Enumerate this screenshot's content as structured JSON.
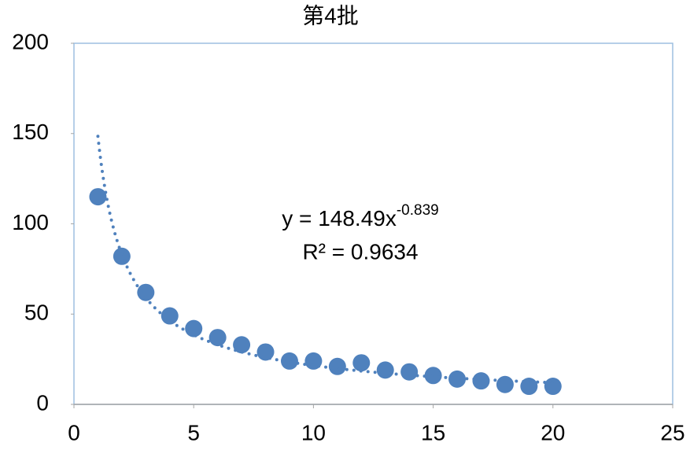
{
  "chart_data": {
    "type": "scatter",
    "title": "第4批",
    "series": [
      {
        "color": "#4f81bd",
        "x": [
          1,
          2,
          3,
          4,
          5,
          6,
          7,
          8,
          9,
          10,
          11,
          12,
          13,
          14,
          15,
          16,
          17,
          18,
          19,
          20
        ],
        "values": [
          115,
          82,
          62,
          49,
          42,
          37,
          33,
          29,
          24,
          24,
          21,
          23,
          19,
          18,
          16,
          14,
          13,
          11,
          10,
          10
        ]
      }
    ],
    "trendline": {
      "type": "power",
      "a": 148.49,
      "b": -0.839,
      "equation": "y = 148.49x",
      "exponent_label": "-0.839",
      "r2_label": "R² = 0.9634"
    },
    "xlim": [
      0,
      25
    ],
    "xticks": [
      0,
      5,
      10,
      15,
      20,
      25
    ],
    "ylim": [
      0,
      200
    ],
    "yticks": [
      0,
      50,
      100,
      150,
      200
    ]
  }
}
